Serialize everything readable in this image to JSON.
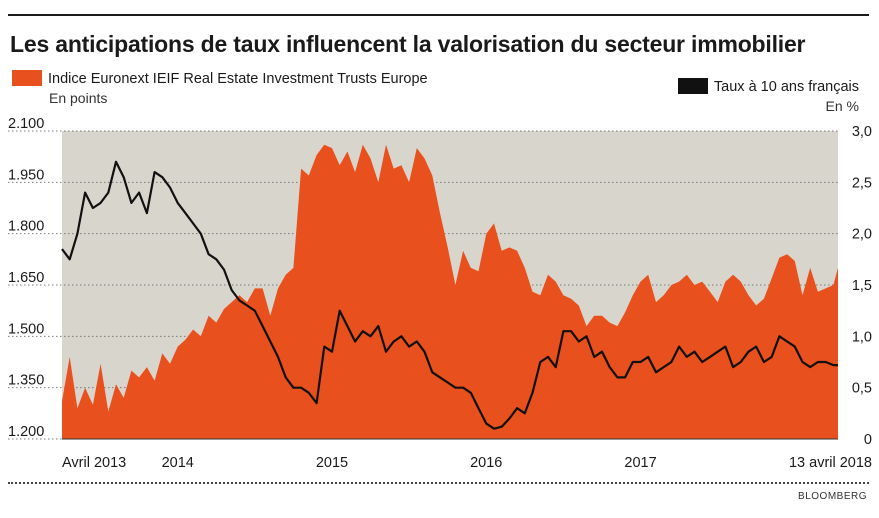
{
  "chart_data": {
    "type": "area",
    "title": "Les anticipations de taux influencent la valorisation du secteur immobilier",
    "source": "BLOOMBERG",
    "x_tick_labels": [
      "Avril 2013",
      "2014",
      "2015",
      "2016",
      "2017",
      "13 avril 2018"
    ],
    "x_tick_positions": [
      2013.25,
      2014.0,
      2015.0,
      2016.0,
      2017.0,
      2018.28
    ],
    "x_range": [
      2013.25,
      2018.28
    ],
    "grid": "horizontal dotted",
    "left_axis": {
      "series": "Indice Euronext IEIF Real Estate Investment Trusts Europe",
      "unit": "En points",
      "ylim": [
        1200,
        2100
      ],
      "tick_labels": [
        "2.100",
        "1.950",
        "1.800",
        "1.650",
        "1.500",
        "1.350",
        "1.200"
      ],
      "tick_values": [
        2100,
        1950,
        1800,
        1650,
        1500,
        1350,
        1200
      ]
    },
    "right_axis": {
      "series": "Taux à 10 ans français",
      "unit": "En %",
      "ylim": [
        0,
        3.0
      ],
      "tick_labels": [
        "3,0",
        "2,5",
        "2,0",
        "1,5",
        "1,0",
        "0,5",
        "0"
      ],
      "tick_values": [
        3.0,
        2.5,
        2.0,
        1.5,
        1.0,
        0.5,
        0
      ]
    },
    "series": [
      {
        "name": "Indice Euronext IEIF Real Estate Investment Trusts Europe",
        "axis": "left",
        "type": "area",
        "color": "#e8501d",
        "x": [
          2013.25,
          2013.3,
          2013.35,
          2013.4,
          2013.45,
          2013.5,
          2013.55,
          2013.6,
          2013.65,
          2013.7,
          2013.75,
          2013.8,
          2013.85,
          2013.9,
          2013.95,
          2014.0,
          2014.05,
          2014.1,
          2014.15,
          2014.2,
          2014.25,
          2014.3,
          2014.35,
          2014.4,
          2014.45,
          2014.5,
          2014.55,
          2014.6,
          2014.65,
          2014.7,
          2014.75,
          2014.8,
          2014.85,
          2014.9,
          2014.95,
          2015.0,
          2015.05,
          2015.1,
          2015.15,
          2015.2,
          2015.25,
          2015.3,
          2015.35,
          2015.4,
          2015.45,
          2015.5,
          2015.55,
          2015.6,
          2015.65,
          2015.7,
          2015.75,
          2015.8,
          2015.85,
          2015.9,
          2015.95,
          2016.0,
          2016.05,
          2016.1,
          2016.15,
          2016.2,
          2016.25,
          2016.3,
          2016.35,
          2016.4,
          2016.45,
          2016.5,
          2016.55,
          2016.6,
          2016.65,
          2016.7,
          2016.75,
          2016.8,
          2016.85,
          2016.9,
          2016.95,
          2017.0,
          2017.05,
          2017.1,
          2017.15,
          2017.2,
          2017.25,
          2017.3,
          2017.35,
          2017.4,
          2017.45,
          2017.5,
          2017.55,
          2017.6,
          2017.65,
          2017.7,
          2017.75,
          2017.8,
          2017.85,
          2017.9,
          2017.95,
          2018.0,
          2018.05,
          2018.1,
          2018.15,
          2018.2,
          2018.25,
          2018.28
        ],
        "values": [
          1310,
          1440,
          1290,
          1350,
          1300,
          1420,
          1280,
          1360,
          1320,
          1400,
          1380,
          1410,
          1370,
          1450,
          1420,
          1470,
          1490,
          1520,
          1500,
          1560,
          1540,
          1580,
          1600,
          1620,
          1600,
          1640,
          1640,
          1560,
          1640,
          1680,
          1700,
          1990,
          1970,
          2030,
          2060,
          2050,
          2000,
          2040,
          1980,
          2060,
          2020,
          1950,
          2060,
          1990,
          2000,
          1950,
          2050,
          2020,
          1970,
          1860,
          1760,
          1650,
          1750,
          1700,
          1690,
          1800,
          1830,
          1750,
          1760,
          1750,
          1700,
          1630,
          1620,
          1680,
          1660,
          1620,
          1610,
          1590,
          1530,
          1560,
          1560,
          1540,
          1530,
          1570,
          1620,
          1660,
          1680,
          1600,
          1620,
          1650,
          1660,
          1680,
          1650,
          1660,
          1630,
          1600,
          1660,
          1680,
          1660,
          1620,
          1590,
          1610,
          1670,
          1730,
          1740,
          1720,
          1620,
          1700,
          1630,
          1640,
          1650,
          1700
        ]
      },
      {
        "name": "Taux à 10 ans français",
        "axis": "right",
        "type": "line",
        "color": "#111111",
        "x": [
          2013.25,
          2013.3,
          2013.35,
          2013.4,
          2013.45,
          2013.5,
          2013.55,
          2013.6,
          2013.65,
          2013.7,
          2013.75,
          2013.8,
          2013.85,
          2013.9,
          2013.95,
          2014.0,
          2014.05,
          2014.1,
          2014.15,
          2014.2,
          2014.25,
          2014.3,
          2014.35,
          2014.4,
          2014.45,
          2014.5,
          2014.55,
          2014.6,
          2014.65,
          2014.7,
          2014.75,
          2014.8,
          2014.85,
          2014.9,
          2014.95,
          2015.0,
          2015.05,
          2015.1,
          2015.15,
          2015.2,
          2015.25,
          2015.3,
          2015.35,
          2015.4,
          2015.45,
          2015.5,
          2015.55,
          2015.6,
          2015.65,
          2015.7,
          2015.75,
          2015.8,
          2015.85,
          2015.9,
          2015.95,
          2016.0,
          2016.05,
          2016.1,
          2016.15,
          2016.2,
          2016.25,
          2016.3,
          2016.35,
          2016.4,
          2016.45,
          2016.5,
          2016.55,
          2016.6,
          2016.65,
          2016.7,
          2016.75,
          2016.8,
          2016.85,
          2016.9,
          2016.95,
          2017.0,
          2017.05,
          2017.1,
          2017.15,
          2017.2,
          2017.25,
          2017.3,
          2017.35,
          2017.4,
          2017.45,
          2017.5,
          2017.55,
          2017.6,
          2017.65,
          2017.7,
          2017.75,
          2017.8,
          2017.85,
          2017.9,
          2017.95,
          2018.0,
          2018.05,
          2018.1,
          2018.15,
          2018.2,
          2018.25,
          2018.28
        ],
        "values": [
          1.85,
          1.75,
          2.0,
          2.4,
          2.25,
          2.3,
          2.4,
          2.7,
          2.55,
          2.3,
          2.4,
          2.2,
          2.6,
          2.55,
          2.45,
          2.3,
          2.2,
          2.1,
          2.0,
          1.8,
          1.75,
          1.65,
          1.45,
          1.35,
          1.3,
          1.25,
          1.1,
          0.95,
          0.8,
          0.6,
          0.5,
          0.5,
          0.45,
          0.35,
          0.9,
          0.85,
          1.25,
          1.1,
          0.95,
          1.05,
          1.0,
          1.1,
          0.85,
          0.95,
          1.0,
          0.9,
          0.95,
          0.85,
          0.65,
          0.6,
          0.55,
          0.5,
          0.5,
          0.45,
          0.3,
          0.15,
          0.1,
          0.12,
          0.2,
          0.3,
          0.25,
          0.45,
          0.75,
          0.8,
          0.7,
          1.05,
          1.05,
          0.95,
          1.0,
          0.8,
          0.85,
          0.7,
          0.6,
          0.6,
          0.75,
          0.75,
          0.8,
          0.65,
          0.7,
          0.75,
          0.9,
          0.8,
          0.85,
          0.75,
          0.8,
          0.85,
          0.9,
          0.7,
          0.75,
          0.85,
          0.9,
          0.75,
          0.8,
          1.0,
          0.95,
          0.9,
          0.75,
          0.7,
          0.75,
          0.75,
          0.72,
          0.72
        ]
      }
    ]
  },
  "legend": {
    "area_label": "Indice Euronext IEIF Real Estate Investment Trusts Europe",
    "area_unit": "En points",
    "line_label": "Taux à 10 ans français",
    "line_unit": "En %"
  }
}
